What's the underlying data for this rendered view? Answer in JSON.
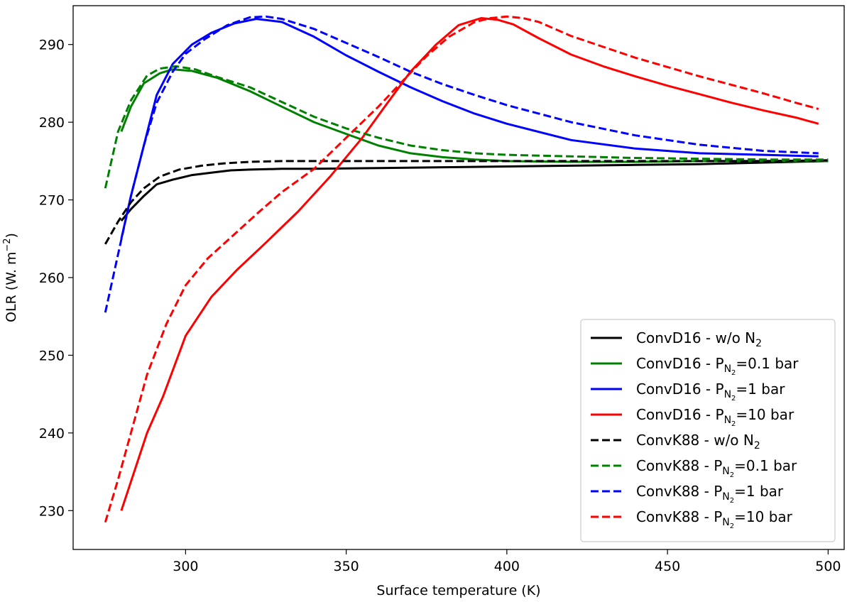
{
  "chart_data": {
    "type": "line",
    "title": "",
    "xlabel": "Surface temperature (K)",
    "ylabel_main": "OLR (W. m",
    "ylabel_sup": "−2",
    "ylabel_tail": ")",
    "xlim": [
      265,
      505
    ],
    "ylim": [
      225,
      295
    ],
    "xticks": [
      300,
      350,
      400,
      450,
      500
    ],
    "yticks": [
      230,
      240,
      250,
      260,
      270,
      280,
      290
    ],
    "legend_position": "lower-right",
    "series": [
      {
        "name_main": "ConvD16 - w/o N",
        "name_sub": "2",
        "name_tail": "",
        "name_sub_style": "plain",
        "color": "#000000",
        "style": "solid",
        "x": [
          280,
          283,
          287,
          291,
          296,
          302,
          308,
          314,
          320,
          330,
          340,
          360,
          380,
          400,
          420,
          440,
          460,
          480,
          500
        ],
        "y": [
          267.3,
          268.8,
          270.5,
          272.0,
          272.6,
          273.2,
          273.5,
          273.8,
          273.9,
          274.0,
          274.0,
          274.1,
          274.2,
          274.3,
          274.4,
          274.5,
          274.6,
          274.8,
          275.0
        ]
      },
      {
        "name_main": "ConvD16 - P",
        "name_sub": "N",
        "name_subsub": "2",
        "name_tail": "=0.1 bar",
        "name_sub_style": "nested",
        "color": "#008000",
        "style": "solid",
        "x": [
          280,
          283,
          287,
          292,
          296,
          302,
          310,
          320,
          330,
          340,
          350,
          360,
          370,
          380,
          390,
          400,
          420,
          440,
          460,
          480,
          500
        ],
        "y": [
          278.8,
          282.0,
          285.0,
          286.3,
          286.8,
          286.6,
          285.7,
          284.0,
          282.0,
          280.0,
          278.5,
          277.0,
          276.0,
          275.5,
          275.2,
          275.0,
          274.9,
          274.9,
          275.0,
          275.0,
          275.0
        ]
      },
      {
        "name_main": "ConvD16 - P",
        "name_sub": "N",
        "name_subsub": "2",
        "name_tail": "=1 bar",
        "name_sub_style": "nested",
        "color": "#0000ff",
        "style": "solid",
        "x": [
          280,
          283,
          287,
          291,
          296,
          302,
          308,
          315,
          322,
          330,
          340,
          350,
          360,
          370,
          380,
          390,
          400,
          420,
          440,
          460,
          480,
          497
        ],
        "y": [
          265.0,
          270.5,
          277.0,
          283.5,
          287.5,
          290.0,
          291.5,
          292.7,
          293.3,
          292.9,
          291.0,
          288.6,
          286.5,
          284.5,
          282.7,
          281.1,
          279.8,
          277.7,
          276.6,
          276.0,
          275.8,
          275.6
        ]
      },
      {
        "name_main": "ConvD16 - P",
        "name_sub": "N",
        "name_subsub": "2",
        "name_tail": "=10 bar",
        "name_sub_style": "nested",
        "color": "#ff0000",
        "style": "solid",
        "x": [
          280,
          284,
          288,
          293,
          300,
          308,
          316,
          325,
          335,
          345,
          355,
          362,
          370,
          378,
          385,
          392,
          397,
          402,
          410,
          420,
          430,
          440,
          450,
          460,
          470,
          480,
          490,
          497
        ],
        "y": [
          230.0,
          235.0,
          240.0,
          244.7,
          252.5,
          257.5,
          261.0,
          264.5,
          268.5,
          273.0,
          278.0,
          282.0,
          286.5,
          290.0,
          292.5,
          293.4,
          293.2,
          292.6,
          290.8,
          288.7,
          287.2,
          285.9,
          284.7,
          283.6,
          282.5,
          281.5,
          280.6,
          279.8
        ]
      },
      {
        "name_main": "ConvK88 - w/o N",
        "name_sub": "2",
        "name_tail": "",
        "name_sub_style": "plain",
        "color": "#000000",
        "style": "dashed",
        "x": [
          275,
          279,
          283,
          287,
          292,
          298,
          305,
          312,
          320,
          330,
          340,
          360,
          380,
          400,
          420,
          440,
          460,
          480,
          500
        ],
        "y": [
          264.3,
          267.2,
          269.7,
          271.5,
          273.0,
          273.9,
          274.4,
          274.7,
          274.9,
          275.0,
          275.0,
          275.0,
          275.0,
          275.0,
          275.0,
          275.0,
          275.0,
          275.0,
          275.1
        ]
      },
      {
        "name_main": "ConvK88 - P",
        "name_sub": "N",
        "name_subsub": "2",
        "name_tail": "=0.1 bar",
        "name_sub_style": "nested",
        "color": "#008000",
        "style": "dashed",
        "x": [
          275,
          279,
          283,
          288,
          292,
          297,
          303,
          310,
          320,
          330,
          340,
          350,
          360,
          370,
          380,
          390,
          400,
          420,
          440,
          460,
          480,
          500
        ],
        "y": [
          271.5,
          278.8,
          282.8,
          286.0,
          286.9,
          287.2,
          286.8,
          285.8,
          284.5,
          282.6,
          280.7,
          279.2,
          278.0,
          277.0,
          276.4,
          276.0,
          275.8,
          275.6,
          275.4,
          275.3,
          275.2,
          275.2
        ]
      },
      {
        "name_main": "ConvK88 - P",
        "name_sub": "N",
        "name_subsub": "2",
        "name_tail": "=1 bar",
        "name_sub_style": "nested",
        "color": "#0000ff",
        "style": "dashed",
        "x": [
          275,
          279,
          283,
          287,
          291,
          296,
          300,
          306,
          313,
          320,
          325,
          330,
          340,
          350,
          360,
          370,
          380,
          390,
          400,
          420,
          440,
          460,
          480,
          497
        ],
        "y": [
          255.5,
          263.0,
          270.5,
          277.0,
          282.5,
          286.5,
          288.8,
          290.7,
          292.5,
          293.5,
          293.6,
          293.3,
          292.0,
          290.2,
          288.4,
          286.5,
          284.9,
          283.5,
          282.2,
          280.0,
          278.3,
          277.1,
          276.3,
          276.0
        ]
      },
      {
        "name_main": "ConvK88 - P",
        "name_sub": "N",
        "name_subsub": "2",
        "name_tail": "=10 bar",
        "name_sub_style": "nested",
        "color": "#ff0000",
        "style": "dashed",
        "x": [
          275,
          279,
          283,
          288,
          294,
          300,
          307,
          315,
          323,
          330,
          340,
          350,
          360,
          368,
          375,
          382,
          390,
          395,
          400,
          405,
          410,
          420,
          430,
          440,
          450,
          460,
          470,
          480,
          490,
          497
        ],
        "y": [
          228.5,
          234.0,
          240.0,
          247.5,
          254.0,
          259.0,
          262.5,
          265.5,
          268.5,
          271.0,
          274.0,
          278.0,
          282.0,
          285.5,
          288.5,
          291.0,
          292.9,
          293.4,
          293.6,
          293.4,
          292.9,
          291.1,
          289.7,
          288.3,
          287.1,
          285.9,
          284.8,
          283.7,
          282.5,
          281.7
        ]
      }
    ]
  }
}
